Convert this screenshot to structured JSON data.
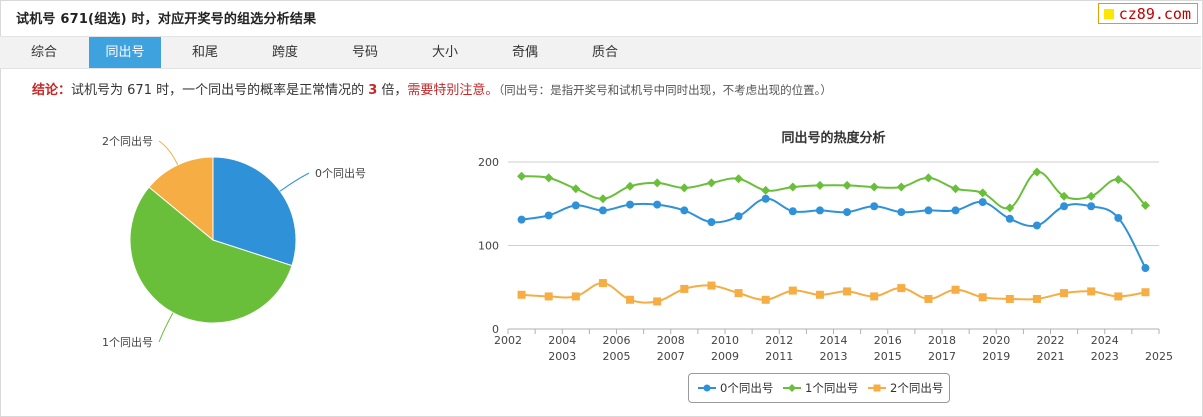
{
  "header": {
    "title": "试机号 671(组选) 时，对应开奖号的组选分析结果"
  },
  "brand": {
    "text": "cz89.com"
  },
  "tabs": [
    "综合",
    "同出号",
    "和尾",
    "跨度",
    "号码",
    "大小",
    "奇偶",
    "质合"
  ],
  "active_tab": "同出号",
  "conclusion": {
    "label": "结论：",
    "text1": "试机号为 671 时，一个同出号的概率是正常情况的 ",
    "multiple": "3",
    "text2": " 倍，",
    "warning": "需要特别注意。",
    "note": "（同出号：是指开奖号和试机号中同时出现，不考虑出现的位置。）"
  },
  "colors": {
    "s0": "#2f92d8",
    "s1": "#6abf3a",
    "s2": "#f5ad44",
    "accent": "#3da2de"
  },
  "chart_data": [
    {
      "type": "pie",
      "labels": [
        "0个同出号",
        "1个同出号",
        "2个同出号"
      ],
      "values": [
        30,
        56,
        14
      ]
    },
    {
      "type": "line",
      "title": "同出号的热度分析",
      "x": [
        2002,
        2003,
        2004,
        2005,
        2006,
        2007,
        2008,
        2009,
        2010,
        2011,
        2012,
        2013,
        2014,
        2015,
        2016,
        2017,
        2018,
        2019,
        2020,
        2021,
        2022,
        2023,
        2024,
        2025
      ],
      "ylim": [
        0,
        200
      ],
      "yticks": [
        0,
        100,
        200
      ],
      "grid": true,
      "legend": "bottom",
      "series": [
        {
          "name": "0个同出号",
          "values": [
            131,
            136,
            148,
            142,
            149,
            149,
            142,
            128,
            135,
            156,
            141,
            142,
            140,
            147,
            140,
            142,
            142,
            152,
            132,
            124,
            147,
            147,
            133,
            73
          ]
        },
        {
          "name": "1个同出号",
          "values": [
            183,
            181,
            168,
            156,
            171,
            175,
            169,
            175,
            180,
            166,
            170,
            172,
            172,
            170,
            170,
            181,
            168,
            163,
            145,
            188,
            159,
            159,
            179,
            148
          ]
        },
        {
          "name": "2个同出号",
          "values": [
            41,
            39,
            39,
            55,
            35,
            33,
            48,
            52,
            43,
            35,
            46,
            41,
            45,
            39,
            49,
            36,
            47,
            38,
            36,
            36,
            43,
            45,
            39,
            44
          ]
        }
      ]
    }
  ]
}
